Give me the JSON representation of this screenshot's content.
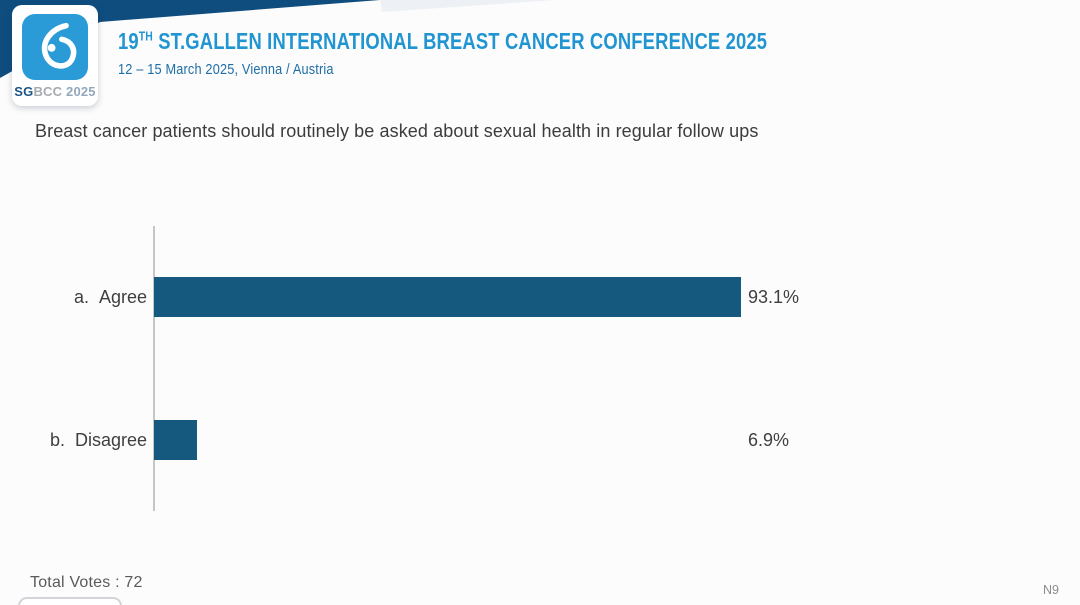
{
  "header": {
    "title_num": "19",
    "title_sup": "TH",
    "title_rest": " ST.GALLEN INTERNATIONAL BREAST CANCER CONFERENCE 2025",
    "subtitle": "12 – 15 March 2025, Vienna / Austria",
    "logo": {
      "glyph": "breast-drop-icon",
      "caption_sg": "SG",
      "caption_bcc": "BCC",
      "caption_year": " 2025"
    }
  },
  "question": "Breast cancer patients should routinely be asked about sexual health in regular follow ups",
  "chart_data": {
    "type": "bar",
    "orientation": "horizontal",
    "title": "Breast cancer patients should routinely be asked about sexual health in regular follow ups",
    "option_letters": [
      "a.",
      "b."
    ],
    "categories": [
      "Agree",
      "Disagree"
    ],
    "values": [
      93.1,
      6.9
    ],
    "value_labels": [
      "93.1%",
      "6.9%"
    ],
    "xlim": [
      0,
      100
    ],
    "grid": false,
    "legend": false,
    "bar_color": "#15597f",
    "axis_color": "#c6c6c6",
    "total_votes": 72
  },
  "footer": {
    "total_votes_text": "Total Votes : 72",
    "slide_code": "N9"
  },
  "colors": {
    "title_blue": "#2095d2",
    "subtitle_blue": "#1d6ea6",
    "navy_band": "#0e4d7e",
    "logo_blue": "#2b9bd7",
    "bar_blue": "#15597f",
    "text_dark": "#3f3f3f"
  }
}
